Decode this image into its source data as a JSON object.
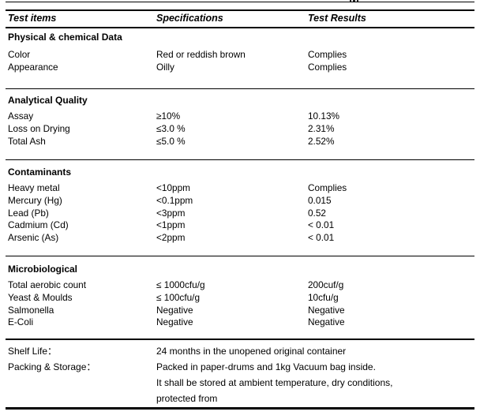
{
  "header": {
    "columns": [
      "Test items",
      "Specifications",
      "Test Results"
    ]
  },
  "sections": [
    {
      "title": "Physical & chemical Data",
      "rows": [
        {
          "item": "Color",
          "spec": "Red or reddish brown",
          "result": "Complies"
        },
        {
          "item": "Appearance",
          "spec": "Oilly",
          "result": "Complies"
        }
      ]
    },
    {
      "title": "Analytical Quality",
      "rows": [
        {
          "item": "Assay",
          "spec": "≥10%",
          "result": "10.13%"
        },
        {
          "item": "Loss on Drying",
          "spec": "≤3.0 %",
          "result": "2.31%"
        },
        {
          "item": "Total Ash",
          "spec": "≤5.0 %",
          "result": "2.52%"
        }
      ]
    },
    {
      "title": "Contaminants",
      "rows": [
        {
          "item": "Heavy metal",
          "spec": "<10ppm",
          "result": "Complies"
        },
        {
          "item": "Mercury (Hg)",
          "spec": "<0.1ppm",
          "result": "0.015"
        },
        {
          "item": "Lead (Pb)",
          "spec": "<3ppm",
          "result": "0.52"
        },
        {
          "item": "Cadmium (Cd)",
          "spec": "<1ppm",
          "result": "< 0.01"
        },
        {
          "item": "Arsenic (As)",
          "spec": "<2ppm",
          "result": "< 0.01"
        }
      ]
    },
    {
      "title": "Microbiological",
      "rows": [
        {
          "item": "Total aerobic count",
          "spec": "≤ 1000cfu/g",
          "result": "200cuf/g"
        },
        {
          "item": "Yeast & Moulds",
          "spec": "≤ 100cfu/g",
          "result": "10cfu/g"
        },
        {
          "item": "Salmonella",
          "spec": "Negative",
          "result": "Negative"
        },
        {
          "item": "E-Coli",
          "spec": "Negative",
          "result": "Negative"
        }
      ]
    }
  ],
  "footer": {
    "shelf_life_label": "Shelf Life：",
    "shelf_life_value": "24 months in the unopened original container",
    "packing_label": "Packing & Storage：",
    "packing_lines": [
      "Packed in paper-drums and 1kg Vacuum bag inside.",
      "It shall be stored at ambient temperature, dry conditions,",
      "protected from"
    ]
  }
}
